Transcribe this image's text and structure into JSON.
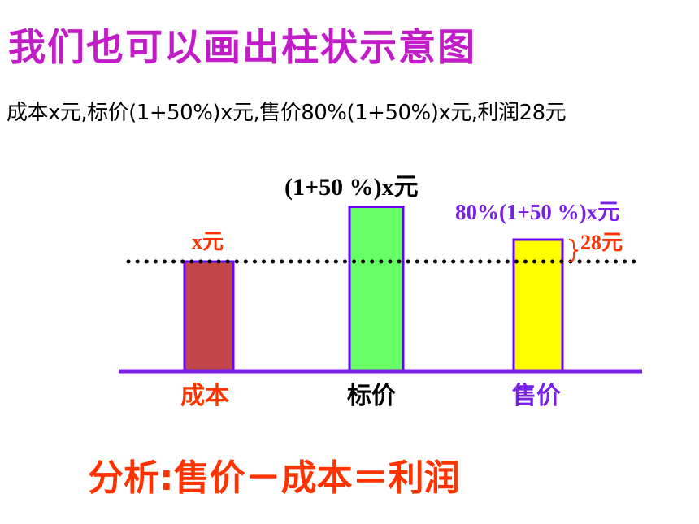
{
  "title": "我们也可以画出柱状示意图",
  "subtitle": "成本x元,标价(1+50%)x元,售价80%(1+50%)x元,利润28元",
  "conclusion": "分析:售价－成本＝利润",
  "colors": {
    "title": "#c21cc8",
    "cost_bar": "#c0464c",
    "list_bar": "#66ff66",
    "sale_bar": "#ffff00",
    "bar_border": "#6a00ff",
    "axis": "#7a1fe6",
    "red_text": "#ff3300",
    "purple_text": "#7a1fe6",
    "dotted_line": "#000000"
  },
  "chart_data": {
    "type": "bar",
    "categories": [
      "成本",
      "标价",
      "售价"
    ],
    "relative_values": [
      1.0,
      1.5,
      1.2
    ],
    "value_labels": [
      "x元",
      "(1+50 %)x元",
      "80%(1+50 %)x元"
    ],
    "annotation": "28元",
    "annotation_meaning": "profit brace between cost level (dotted line) and sale price"
  }
}
